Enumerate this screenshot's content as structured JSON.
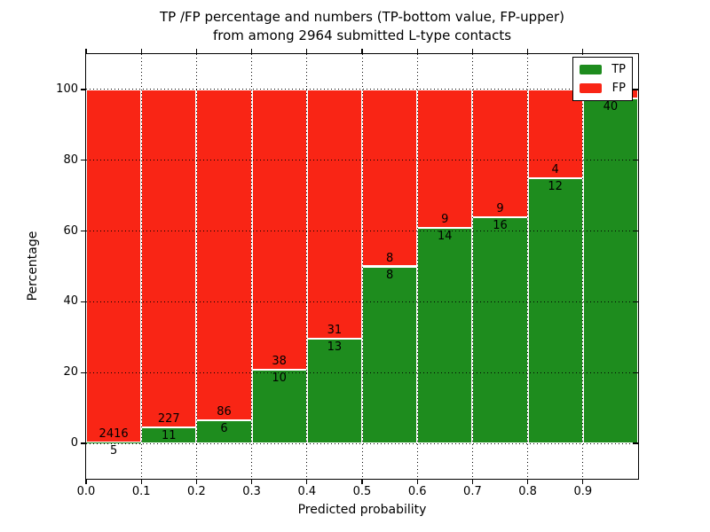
{
  "figure": {
    "title_line1": "TP /FP percentage and numbers (TP-bottom value, FP-upper)",
    "title_line2": "from among 2964 submitted L-type contacts",
    "xlabel": "Predicted probability",
    "ylabel": "Percentage"
  },
  "legend": {
    "items": [
      {
        "label": "TP",
        "color": "#1e8c1e"
      },
      {
        "label": "FP",
        "color": "#f92515"
      }
    ]
  },
  "colors": {
    "tp": "#1e8c1e",
    "fp": "#f92515",
    "background": "#ffffff",
    "text": "#000000",
    "grid": "#000000"
  },
  "chart_data": {
    "type": "bar",
    "stacked": true,
    "normalized": "each bin scaled to 100% (TP% bottom, FP% top)",
    "title": "TP /FP percentage and numbers (TP-bottom value, FP-upper) from among 2964 submitted L-type contacts",
    "xlabel": "Predicted probability",
    "ylabel": "Percentage",
    "xlim": [
      0.0,
      1.0
    ],
    "ylim": [
      -10,
      110
    ],
    "x_tick_labels": [
      "0.0",
      "0.1",
      "0.2",
      "0.3",
      "0.4",
      "0.5",
      "0.6",
      "0.7",
      "0.8",
      "0.9"
    ],
    "y_tick_values": [
      0,
      20,
      40,
      60,
      80,
      100
    ],
    "y_tick_labels": [
      "0",
      "20",
      "40",
      "60",
      "80",
      "100"
    ],
    "grid": "dotted",
    "legend_position": "upper right",
    "total_contacts": 2964,
    "series": [
      {
        "name": "TP",
        "color": "#1e8c1e"
      },
      {
        "name": "FP",
        "color": "#f92515"
      }
    ],
    "bins": [
      {
        "range": [
          0.0,
          0.1
        ],
        "tp": 5,
        "fp": 2416,
        "tp_label": "5",
        "fp_label": "2416"
      },
      {
        "range": [
          0.1,
          0.2
        ],
        "tp": 11,
        "fp": 227,
        "tp_label": "11",
        "fp_label": "227"
      },
      {
        "range": [
          0.2,
          0.3
        ],
        "tp": 6,
        "fp": 86,
        "tp_label": "6",
        "fp_label": "86"
      },
      {
        "range": [
          0.3,
          0.4
        ],
        "tp": 10,
        "fp": 38,
        "tp_label": "10",
        "fp_label": "38"
      },
      {
        "range": [
          0.4,
          0.5
        ],
        "tp": 13,
        "fp": 31,
        "tp_label": "13",
        "fp_label": "31"
      },
      {
        "range": [
          0.5,
          0.6
        ],
        "tp": 8,
        "fp": 8,
        "tp_label": "8",
        "fp_label": "8"
      },
      {
        "range": [
          0.6,
          0.7
        ],
        "tp": 14,
        "fp": 9,
        "tp_label": "14",
        "fp_label": "9"
      },
      {
        "range": [
          0.7,
          0.8
        ],
        "tp": 16,
        "fp": 9,
        "tp_label": "16",
        "fp_label": "9"
      },
      {
        "range": [
          0.8,
          0.9
        ],
        "tp": 12,
        "fp": 4,
        "tp_label": "12",
        "fp_label": "4"
      },
      {
        "range": [
          0.9,
          1.0
        ],
        "tp": 40,
        "fp": 1,
        "tp_label": "40",
        "fp_label": "",
        "fp_label_hidden_behind_legend": true
      }
    ]
  }
}
